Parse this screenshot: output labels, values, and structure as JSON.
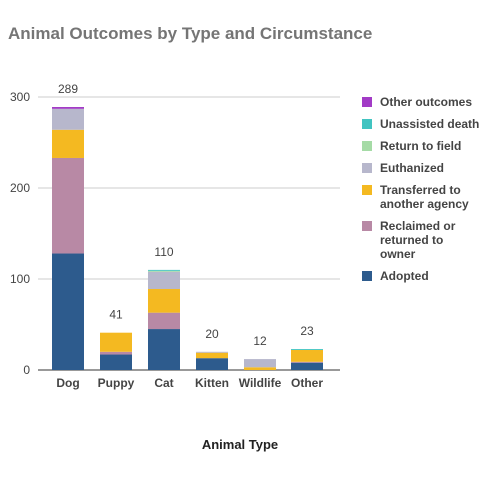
{
  "chart_data": {
    "type": "bar",
    "stacked": true,
    "title": "Animal Outcomes by Type and Circumstance",
    "xlabel": "Animal Type",
    "ylabel": "",
    "ylim": [
      0,
      300
    ],
    "yticks": [
      0,
      100,
      200,
      300
    ],
    "grid": true,
    "legend_position": "right",
    "categories": [
      "Dog",
      "Puppy",
      "Cat",
      "Kitten",
      "Wildlife",
      "Other"
    ],
    "totals": [
      289,
      41,
      110,
      20,
      12,
      23
    ],
    "series": [
      {
        "name": "Adopted",
        "color": "#2d5b8d",
        "values": [
          128,
          17,
          45,
          13,
          0,
          8
        ]
      },
      {
        "name": "Reclaimed or returned to owner",
        "color": "#b889a5",
        "values": [
          105,
          3,
          18,
          0,
          0,
          1
        ]
      },
      {
        "name": "Transferred to another agency",
        "color": "#f4b921",
        "values": [
          31,
          21,
          26,
          6,
          3,
          13
        ]
      },
      {
        "name": "Euthanized",
        "color": "#b7b7cc",
        "values": [
          23,
          0,
          19,
          1,
          9,
          0
        ]
      },
      {
        "name": "Return to field",
        "color": "#a5dba6",
        "values": [
          0,
          0,
          1,
          0,
          0,
          0
        ]
      },
      {
        "name": "Unassisted death",
        "color": "#41c4c1",
        "values": [
          0,
          0,
          1,
          0,
          0,
          1
        ]
      },
      {
        "name": "Other outcomes",
        "color": "#a23bc6",
        "values": [
          2,
          0,
          0,
          0,
          0,
          0
        ]
      }
    ]
  }
}
